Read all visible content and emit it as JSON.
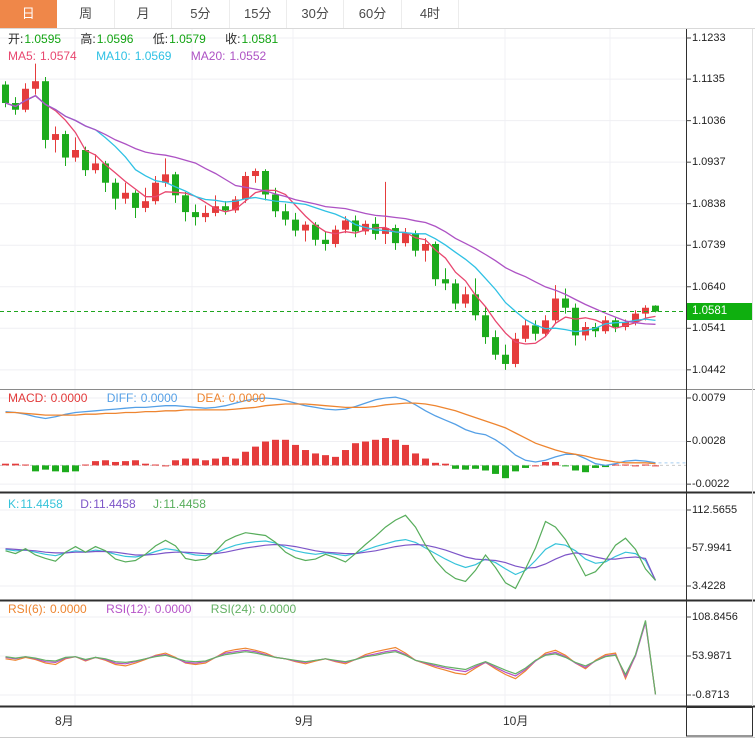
{
  "tabs": {
    "items": [
      {
        "label": "日",
        "active": true
      },
      {
        "label": "周",
        "active": false
      },
      {
        "label": "月",
        "active": false
      },
      {
        "label": "5分",
        "active": false
      },
      {
        "label": "15分",
        "active": false
      },
      {
        "label": "30分",
        "active": false
      },
      {
        "label": "60分",
        "active": false
      },
      {
        "label": "4时",
        "active": false
      }
    ]
  },
  "main": {
    "info": {
      "o_label": "开:",
      "o": "1.0595",
      "h_label": "高:",
      "h": "1.0596",
      "l_label": "低:",
      "l": "1.0579",
      "c_label": "收:",
      "c": "1.0581"
    },
    "ma": {
      "ma5_label": "MA5:",
      "ma5": "1.0574",
      "ma10_label": "MA10:",
      "ma10": "1.0569",
      "ma20_label": "MA20:",
      "ma20": "1.0552"
    },
    "axis_ticks": [
      "1.1233",
      "1.1135",
      "1.1036",
      "1.0937",
      "1.0838",
      "1.0739",
      "1.0640",
      "1.0541",
      "1.0442"
    ],
    "price_badge": "1.0581"
  },
  "macd": {
    "header": {
      "macd_label": "MACD:",
      "macd": "0.0000",
      "diff_label": "DIFF:",
      "diff": "0.0000",
      "dea_label": "DEA:",
      "dea": "0.0000"
    },
    "axis_ticks": [
      "0.0079",
      "0.0028",
      "-0.0022"
    ]
  },
  "kdj": {
    "header": {
      "k_label": "K:",
      "k": "11.4458",
      "d_label": "D:",
      "d": "11.4458",
      "j_label": "J:",
      "j": "11.4458"
    },
    "axis_ticks": [
      "112.5655",
      "57.9941",
      "3.4228"
    ]
  },
  "rsi": {
    "header": {
      "r6_label": "RSI(6):",
      "r6": "0.0000",
      "r12_label": "RSI(12):",
      "r12": "0.0000",
      "r24_label": "RSI(24):",
      "r24": "0.0000"
    },
    "axis_ticks": [
      "108.8456",
      "53.9871",
      "-0.8713"
    ]
  },
  "dates": {
    "labels": [
      "8月",
      "9月",
      "10月"
    ]
  },
  "colors": {
    "rise": "#e53c3c",
    "fall": "#1cab1c",
    "badge_bg": "#0faf0f",
    "price_line": "#1fa51f",
    "ma5": "#e8476f",
    "ma10": "#2fc1e4",
    "ma20": "#ad52c4",
    "diff": "#55a0e6",
    "dea": "#ee8530",
    "k": "#36c3da",
    "d": "#7d55c8",
    "j": "#57ad5b",
    "rsi6": "#ee8530",
    "rsi12": "#b653c8",
    "rsi24": "#64b164",
    "tab_active": "#ef8749"
  },
  "chart_data": {
    "type": "candlestick+indicators",
    "x_months": [
      "8月",
      "9月",
      "10月"
    ],
    "current_price": 1.0581,
    "main_ylim": [
      1.0442,
      1.1233
    ],
    "macd_ylim": [
      -0.0022,
      0.0079
    ],
    "kdj_ylim": [
      3.4228,
      112.5655
    ],
    "rsi_ylim": [
      -0.8713,
      108.8456
    ],
    "ma_periods": [
      5,
      10,
      20
    ],
    "candles": [
      [
        1.1122,
        1.113,
        1.1068,
        1.1078
      ],
      [
        1.1078,
        1.1092,
        1.105,
        1.1062
      ],
      [
        1.1062,
        1.1125,
        1.1056,
        1.1112
      ],
      [
        1.1112,
        1.1172,
        1.1098,
        1.113
      ],
      [
        1.113,
        1.114,
        1.097,
        1.099
      ],
      [
        1.099,
        1.1022,
        1.096,
        1.1004
      ],
      [
        1.1004,
        1.1012,
        1.0928,
        1.0948
      ],
      [
        1.0948,
        1.0996,
        1.0938,
        1.0966
      ],
      [
        1.0966,
        1.0974,
        1.0904,
        1.0918
      ],
      [
        1.0918,
        1.0956,
        1.091,
        1.0934
      ],
      [
        1.0934,
        1.094,
        1.0866,
        1.0888
      ],
      [
        1.0888,
        1.0898,
        1.0824,
        1.085
      ],
      [
        1.085,
        1.0888,
        1.0838,
        1.0864
      ],
      [
        1.0864,
        1.087,
        1.0804,
        1.0828
      ],
      [
        1.0828,
        1.0876,
        1.0818,
        1.0844
      ],
      [
        1.0844,
        1.0904,
        1.0836,
        1.0888
      ],
      [
        1.0888,
        1.0946,
        1.0878,
        1.0908
      ],
      [
        1.0908,
        1.0914,
        1.084,
        1.0858
      ],
      [
        1.0858,
        1.0866,
        1.0796,
        1.0818
      ],
      [
        1.0818,
        1.0836,
        1.0786,
        1.0806
      ],
      [
        1.0806,
        1.0834,
        1.0794,
        1.0816
      ],
      [
        1.0816,
        1.0858,
        1.0808,
        1.0832
      ],
      [
        1.0832,
        1.0844,
        1.0812,
        1.0822
      ],
      [
        1.0822,
        1.0856,
        1.0816,
        1.0848
      ],
      [
        1.0848,
        1.0914,
        1.084,
        1.0904
      ],
      [
        1.0904,
        1.0922,
        1.0888,
        1.0916
      ],
      [
        1.0916,
        1.092,
        1.0846,
        1.086
      ],
      [
        1.086,
        1.0876,
        1.0806,
        1.082
      ],
      [
        1.082,
        1.0838,
        1.0786,
        1.08
      ],
      [
        1.08,
        1.0816,
        1.076,
        1.0774
      ],
      [
        1.0774,
        1.0796,
        1.0748,
        1.0788
      ],
      [
        1.0788,
        1.0794,
        1.0738,
        1.0752
      ],
      [
        1.0752,
        1.0772,
        1.0726,
        1.0742
      ],
      [
        1.0742,
        1.0786,
        1.0734,
        1.0776
      ],
      [
        1.0776,
        1.0808,
        1.0768,
        1.0798
      ],
      [
        1.0798,
        1.081,
        1.0758,
        1.0772
      ],
      [
        1.0772,
        1.0798,
        1.0764,
        1.079
      ],
      [
        1.079,
        1.0806,
        1.0752,
        1.0766
      ],
      [
        1.0766,
        1.089,
        1.0742,
        1.078
      ],
      [
        1.078,
        1.0788,
        1.0728,
        1.0744
      ],
      [
        1.0744,
        1.078,
        1.0736,
        1.0768
      ],
      [
        1.0768,
        1.0774,
        1.0712,
        1.0726
      ],
      [
        1.0726,
        1.0756,
        1.07,
        1.0742
      ],
      [
        1.0742,
        1.0748,
        1.0642,
        1.0658
      ],
      [
        1.0658,
        1.0684,
        1.0632,
        1.0648
      ],
      [
        1.0648,
        1.0658,
        1.0586,
        1.06
      ],
      [
        1.06,
        1.064,
        1.059,
        1.0622
      ],
      [
        1.0622,
        1.066,
        1.056,
        1.0572
      ],
      [
        1.0572,
        1.0592,
        1.0504,
        1.052
      ],
      [
        1.052,
        1.0536,
        1.0466,
        1.0478
      ],
      [
        1.0478,
        1.0502,
        1.0442,
        1.0456
      ],
      [
        1.0456,
        1.053,
        1.0448,
        1.0516
      ],
      [
        1.0516,
        1.0562,
        1.0508,
        1.0548
      ],
      [
        1.0548,
        1.056,
        1.0512,
        1.0528
      ],
      [
        1.0528,
        1.0572,
        1.052,
        1.056
      ],
      [
        1.056,
        1.0644,
        1.0552,
        1.0612
      ],
      [
        1.0612,
        1.0636,
        1.0576,
        1.059
      ],
      [
        1.059,
        1.06,
        1.05,
        1.0524
      ],
      [
        1.0524,
        1.0556,
        1.0512,
        1.0544
      ],
      [
        1.0544,
        1.0554,
        1.052,
        1.0534
      ],
      [
        1.0534,
        1.057,
        1.0528,
        1.056
      ],
      [
        1.056,
        1.0566,
        1.0532,
        1.0544
      ],
      [
        1.0544,
        1.0562,
        1.0536,
        1.0556
      ],
      [
        1.0556,
        1.0584,
        1.0548,
        1.0576
      ],
      [
        1.0576,
        1.0596,
        1.056,
        1.059
      ],
      [
        1.0595,
        1.0596,
        1.0579,
        1.0581
      ]
    ],
    "macd": {
      "hist": [
        0.0002,
        0.0002,
        0.0001,
        -0.0007,
        -0.0005,
        -0.0007,
        -0.0008,
        -0.0007,
        0.0001,
        0.0005,
        0.0006,
        0.0004,
        0.0005,
        0.0006,
        0.0002,
        0.0001,
        0.0,
        0.0006,
        0.0008,
        0.0008,
        0.0006,
        0.0008,
        0.001,
        0.0008,
        0.0016,
        0.0022,
        0.0028,
        0.003,
        0.003,
        0.0024,
        0.0018,
        0.0014,
        0.0012,
        0.001,
        0.0018,
        0.0026,
        0.0028,
        0.003,
        0.0032,
        0.003,
        0.0024,
        0.0014,
        0.0008,
        0.0003,
        0.0002,
        -0.0004,
        -0.0005,
        -0.0004,
        -0.0006,
        -0.001,
        -0.0015,
        -0.0007,
        -0.0003,
        0.0,
        0.0004,
        0.0004,
        -0.0001,
        -0.0006,
        -0.0008,
        -0.0003,
        -0.0002,
        0.0001,
        0.0001,
        0.0,
        0.0001,
        0.0
      ],
      "diff": [
        0.0063,
        0.0062,
        0.006,
        0.0057,
        0.0055,
        0.0057,
        0.006,
        0.0062,
        0.0063,
        0.0064,
        0.0065,
        0.0066,
        0.0067,
        0.0068,
        0.0068,
        0.0069,
        0.007,
        0.007,
        0.0069,
        0.0068,
        0.0067,
        0.0068,
        0.007,
        0.0073,
        0.0076,
        0.0078,
        0.0079,
        0.0078,
        0.0076,
        0.0073,
        0.007,
        0.0068,
        0.0066,
        0.0065,
        0.0066,
        0.0069,
        0.0073,
        0.0077,
        0.0079,
        0.008,
        0.0077,
        0.0071,
        0.0064,
        0.0058,
        0.0053,
        0.0048,
        0.0042,
        0.0038,
        0.0036,
        0.003,
        0.0022,
        0.0012,
        0.0006,
        0.0004,
        0.0006,
        0.001,
        0.0013,
        0.0013,
        0.0008,
        0.0002,
        0.0,
        0.0002,
        0.0005,
        0.0006,
        0.0005,
        0.0003
      ],
      "dea": [
        0.0062,
        0.0062,
        0.0061,
        0.006,
        0.0059,
        0.0059,
        0.0059,
        0.0059,
        0.006,
        0.006,
        0.0061,
        0.0061,
        0.0062,
        0.0062,
        0.0063,
        0.0063,
        0.0064,
        0.0064,
        0.0065,
        0.0065,
        0.0065,
        0.0065,
        0.0065,
        0.0066,
        0.0067,
        0.0068,
        0.007,
        0.0071,
        0.0072,
        0.0072,
        0.0072,
        0.0071,
        0.007,
        0.0069,
        0.0068,
        0.0068,
        0.0068,
        0.0069,
        0.0071,
        0.0072,
        0.0073,
        0.0073,
        0.0072,
        0.007,
        0.0067,
        0.0064,
        0.006,
        0.0056,
        0.0052,
        0.0048,
        0.0044,
        0.0038,
        0.0032,
        0.0026,
        0.0022,
        0.0018,
        0.0015,
        0.0013,
        0.0011,
        0.0008,
        0.0006,
        0.0004,
        0.0003,
        0.0003,
        0.0003,
        0.0002
      ]
    },
    "kdj": {
      "k": [
        56,
        54,
        55,
        52,
        49,
        47,
        51,
        54,
        52,
        55,
        53,
        49,
        46,
        45,
        48,
        53,
        57,
        55,
        51,
        48,
        47,
        51,
        57,
        62,
        65,
        67,
        68,
        65,
        59,
        54,
        51,
        49,
        51,
        49,
        47,
        50,
        55,
        60,
        64,
        68,
        70,
        66,
        58,
        50,
        42,
        35,
        30,
        34,
        42,
        37,
        28,
        20,
        26,
        40,
        56,
        64,
        62,
        54,
        42,
        36,
        38,
        46,
        52,
        50,
        40,
        11.4458
      ],
      "d": [
        57,
        56,
        55,
        54,
        52,
        51,
        51,
        52,
        52,
        53,
        53,
        52,
        50,
        48,
        48,
        49,
        51,
        52,
        52,
        51,
        50,
        50,
        52,
        55,
        58,
        60,
        62,
        63,
        62,
        60,
        57,
        54,
        52,
        51,
        50,
        50,
        52,
        54,
        57,
        60,
        62,
        63,
        62,
        59,
        55,
        50,
        45,
        42,
        41,
        40,
        37,
        32,
        29,
        30,
        35,
        42,
        48,
        51,
        49,
        45,
        42,
        42,
        44,
        45,
        43,
        11.4458
      ],
      "j": [
        54,
        50,
        57,
        48,
        43,
        39,
        52,
        60,
        52,
        60,
        54,
        42,
        38,
        40,
        49,
        61,
        69,
        61,
        43,
        40,
        42,
        53,
        68,
        75,
        80,
        78,
        76,
        66,
        52,
        44,
        40,
        42,
        49,
        44,
        38,
        50,
        63,
        75,
        88,
        98,
        105,
        88,
        62,
        40,
        24,
        14,
        10,
        26,
        48,
        30,
        8,
        0,
        28,
        58,
        96,
        88,
        70,
        45,
        18,
        24,
        40,
        62,
        72,
        56,
        28,
        11.4458
      ]
    },
    "rsi": {
      "rsi6": [
        50,
        48,
        52,
        49,
        44,
        42,
        50,
        53,
        47,
        52,
        48,
        42,
        40,
        44,
        49,
        55,
        58,
        52,
        44,
        42,
        44,
        52,
        60,
        63,
        65,
        62,
        58,
        52,
        50,
        46,
        43,
        47,
        50,
        46,
        43,
        49,
        56,
        60,
        63,
        66,
        58,
        48,
        43,
        38,
        34,
        30,
        28,
        37,
        45,
        36,
        28,
        22,
        33,
        47,
        58,
        62,
        55,
        44,
        36,
        48,
        56,
        58,
        22,
        55,
        102,
        0
      ],
      "rsi12": [
        52,
        50,
        53,
        50,
        46,
        45,
        51,
        53,
        48,
        52,
        49,
        44,
        43,
        46,
        50,
        54,
        56,
        51,
        45,
        44,
        46,
        52,
        58,
        60,
        62,
        60,
        56,
        52,
        50,
        47,
        45,
        48,
        50,
        47,
        45,
        49,
        54,
        57,
        60,
        62,
        56,
        48,
        44,
        40,
        37,
        34,
        32,
        39,
        45,
        38,
        31,
        26,
        35,
        47,
        56,
        59,
        53,
        44,
        38,
        47,
        54,
        56,
        25,
        54,
        101,
        0
      ],
      "rsi24": [
        53,
        51,
        53,
        51,
        48,
        47,
        52,
        53,
        49,
        52,
        50,
        46,
        45,
        47,
        50,
        53,
        55,
        51,
        47,
        46,
        47,
        52,
        56,
        58,
        60,
        58,
        55,
        52,
        50,
        48,
        46,
        48,
        50,
        48,
        46,
        49,
        53,
        55,
        58,
        60,
        55,
        48,
        45,
        42,
        39,
        37,
        35,
        41,
        46,
        40,
        34,
        29,
        37,
        48,
        55,
        57,
        52,
        45,
        40,
        47,
        53,
        55,
        28,
        56,
        104,
        0
      ]
    }
  }
}
